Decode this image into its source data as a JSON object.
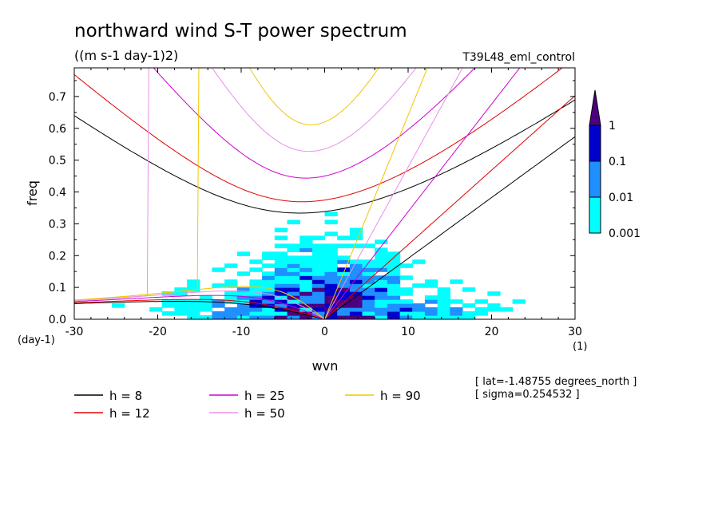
{
  "chart_data": {
    "type": "heatmap",
    "title": "northward wind S-T power spectrum",
    "subtitle": "((m s-1 day-1)2)",
    "run_label": "T39L48_eml_control",
    "xlabel": "wvn",
    "ylabel": "freq",
    "x_unit": "(1)",
    "y_unit": "(day-1)",
    "xlim": [
      -30,
      30
    ],
    "ylim": [
      0,
      0.79
    ],
    "x_ticks": [
      -30,
      -20,
      -10,
      0,
      10,
      20,
      30
    ],
    "x_tick_labels": [
      "-30",
      "-20",
      "-10",
      "0",
      "10",
      "20",
      "30"
    ],
    "y_ticks": [
      0,
      0.1,
      0.2,
      0.3,
      0.4,
      0.5,
      0.6,
      0.7
    ],
    "y_tick_labels": [
      "0.0",
      "0.1",
      "0.2",
      "0.3",
      "0.4",
      "0.5",
      "0.6",
      "0.7"
    ],
    "colorbar": {
      "levels": [
        "0.001",
        "0.01",
        "0.1",
        "1"
      ],
      "colors": [
        "#00ffff",
        "#1e90ff",
        "#0000cd",
        "#4b0082"
      ],
      "extend": "max"
    },
    "dispersion_curves": [
      {
        "name": "h =  8",
        "h": 8,
        "color": "#000000"
      },
      {
        "name": "h = 12",
        "h": 12,
        "color": "#e00000"
      },
      {
        "name": "h = 25",
        "h": 25,
        "color": "#d000d0"
      },
      {
        "name": "h = 50",
        "h": 50,
        "color": "#e890e8"
      },
      {
        "name": "h = 90",
        "h": 90,
        "color": "#f0c800"
      }
    ],
    "info_lines": [
      "[ lat=-1.48755 degrees_north ]",
      "[ sigma=0.254532 ]"
    ],
    "grid": false
  }
}
